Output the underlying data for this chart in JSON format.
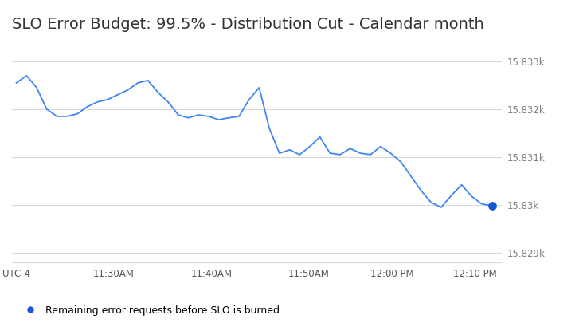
{
  "title": "SLO Error Budget: 99.5% - Distribution Cut - Calendar month",
  "title_fontsize": 14,
  "line_color": "#4285f4",
  "background_color": "#ffffff",
  "grid_color": "#d9d9d9",
  "ylabel_color": "#808080",
  "xlabel_color": "#555555",
  "legend_label": "Remaining error requests before SLO is burned",
  "legend_marker_color": "#1a56db",
  "x_tick_labels": [
    "UTC-4",
    "11:30AM",
    "11:40AM",
    "11:50AM",
    "12:00 PM",
    "12:10 PM"
  ],
  "y_tick_values": [
    15829,
    15830,
    15831,
    15832,
    15833
  ],
  "y_tick_labels": [
    "15.829k",
    "15.83k",
    "15.831k",
    "15.832k",
    "15.833k"
  ],
  "values": [
    15832.55,
    15832.7,
    15832.45,
    15832.0,
    15831.85,
    15831.85,
    15831.9,
    15832.05,
    15832.15,
    15832.2,
    15832.3,
    15832.4,
    15832.55,
    15832.6,
    15832.35,
    15832.15,
    15831.88,
    15831.82,
    15831.88,
    15831.85,
    15831.78,
    15831.82,
    15831.85,
    15832.2,
    15832.45,
    15831.6,
    15831.08,
    15831.15,
    15831.05,
    15831.22,
    15831.42,
    15831.08,
    15831.05,
    15831.18,
    15831.08,
    15831.05,
    15831.22,
    15831.08,
    15830.9,
    15830.6,
    15830.3,
    15830.05,
    15829.95,
    15830.2,
    15830.42,
    15830.18,
    15830.02,
    15829.98
  ],
  "x_tick_positions_norm": [
    0.0,
    0.205,
    0.41,
    0.615,
    0.79,
    0.965
  ],
  "ylim_low": 15828.75,
  "ylim_high": 15833.45,
  "figsize": [
    7.32,
    4.15
  ],
  "dpi": 100
}
